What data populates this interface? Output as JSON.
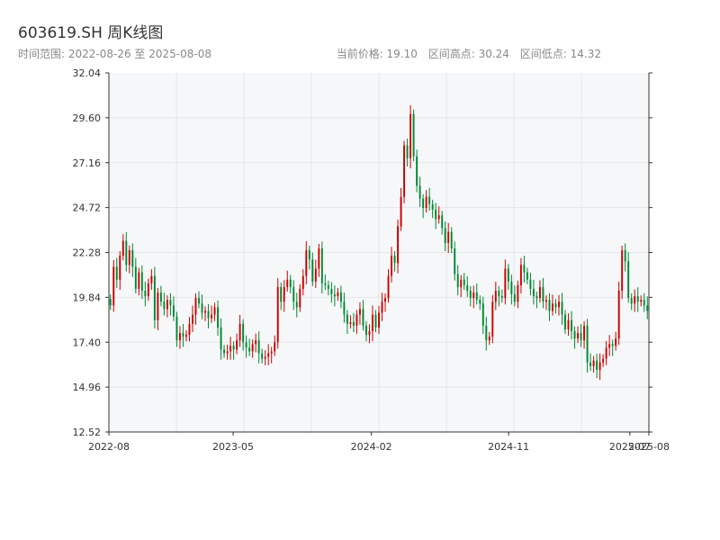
{
  "header": {
    "title": "603619.SH 周K线图",
    "range_text": "时间范围: 2022-08-26 至 2025-08-08",
    "current_price": "当前价格: 19.10",
    "high_text": "区间高点: 30.24",
    "low_text": "区间低点: 14.32"
  },
  "colors": {
    "up": "#cc0000",
    "down": "#008833",
    "plot_bg": "#f6f7f9",
    "grid": "#e3e6ea",
    "axis": "#333333"
  },
  "chart_data": {
    "type": "candlestick",
    "title": "603619.SH 周K线图",
    "xlabel": "",
    "ylabel": "",
    "ylim": [
      12.52,
      32.04
    ],
    "xlim": [
      "2022-08-26",
      "2025-08-08"
    ],
    "grid": true,
    "y_ticks": [
      "12.52",
      "14.96",
      "17.40",
      "19.84",
      "22.28",
      "24.72",
      "27.16",
      "29.60",
      "32.04"
    ],
    "x_ticks": [
      {
        "date": "2022-08-26",
        "label": "2022-08"
      },
      {
        "date": "2023-05-01",
        "label": "2023-05"
      },
      {
        "date": "2024-02-01",
        "label": "2024-02"
      },
      {
        "date": "2024-11-01",
        "label": "2024-11"
      },
      {
        "date": "2025-07-01",
        "label": "2025-07"
      },
      {
        "date": "2025-08-08",
        "label": "2025-08"
      }
    ],
    "weekly_close": [
      19.4,
      21.5,
      20.8,
      22.1,
      22.9,
      21.6,
      22.4,
      21.5,
      20.3,
      21.2,
      20.2,
      19.9,
      20.6,
      21.0,
      18.6,
      20.1,
      19.6,
      19.2,
      19.7,
      19.4,
      18.8,
      17.5,
      17.9,
      17.7,
      17.8,
      18.4,
      18.9,
      19.8,
      19.5,
      19.0,
      19.1,
      18.7,
      18.9,
      19.3,
      18.2,
      17.0,
      16.8,
      16.9,
      17.2,
      17.0,
      17.5,
      18.4,
      17.4,
      17.1,
      16.9,
      17.3,
      17.5,
      16.8,
      16.5,
      16.6,
      16.8,
      16.9,
      17.4,
      20.4,
      19.6,
      20.4,
      20.8,
      20.4,
      19.6,
      19.3,
      20.3,
      21.0,
      22.4,
      21.9,
      20.7,
      21.4,
      22.5,
      20.6,
      20.5,
      20.3,
      20.0,
      19.9,
      20.1,
      19.6,
      18.9,
      18.4,
      18.5,
      18.3,
      18.9,
      19.2,
      18.3,
      17.8,
      18.0,
      18.9,
      18.2,
      19.0,
      19.6,
      19.8,
      21.0,
      22.1,
      21.7,
      23.7,
      25.3,
      28.1,
      27.4,
      29.8,
      27.5,
      25.9,
      25.2,
      24.7,
      25.3,
      24.9,
      24.6,
      24.1,
      24.3,
      23.6,
      22.8,
      23.4,
      22.5,
      21.1,
      20.4,
      20.8,
      20.5,
      20.2,
      19.8,
      20.1,
      19.7,
      19.5,
      18.3,
      17.5,
      17.7,
      19.6,
      20.2,
      19.9,
      19.8,
      21.4,
      20.7,
      20.0,
      19.6,
      20.5,
      21.6,
      21.2,
      20.8,
      20.3,
      19.9,
      19.8,
      20.4,
      19.6,
      19.7,
      19.1,
      19.5,
      19.3,
      19.6,
      18.9,
      18.1,
      18.6,
      18.0,
      17.6,
      17.9,
      17.5,
      18.3,
      16.3,
      16.1,
      16.4,
      15.9,
      16.3,
      16.5,
      17.1,
      17.3,
      17.2,
      17.6,
      20.2,
      22.4,
      21.8,
      19.8,
      19.5,
      19.9,
      19.6,
      19.7,
      19.4,
      19.1
    ]
  }
}
